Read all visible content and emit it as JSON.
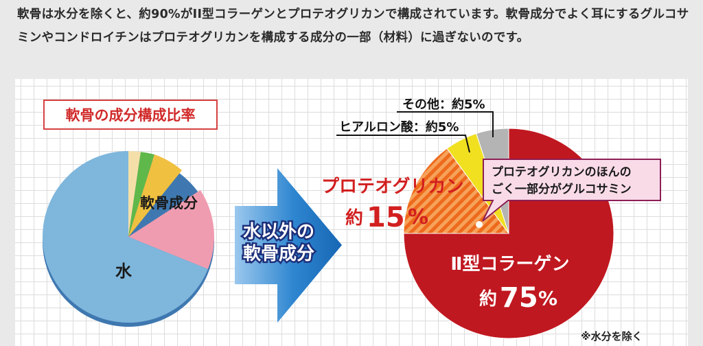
{
  "intro_text": "軟骨は水分を除くと、約90%がII型コラーゲンとプロテオグリカンで構成されています。軟骨成分でよく耳にするグルコサミンやコンドロイチンはプロテオグリカンを構成する成分の一部（材料）に過ぎないのです。",
  "chart_data": [
    {
      "type": "pie",
      "title": "軟骨の成分構成比率",
      "labels": [
        "水",
        "軟骨成分"
      ],
      "values": [
        70,
        30
      ],
      "colors": [
        "#7fb6dc",
        "#f09cb0"
      ]
    },
    {
      "type": "pie",
      "title": "",
      "note": "※水分を除く",
      "labels": [
        "Ⅱ型コラーゲン",
        "プロテオグリカン",
        "ヒアルロン酸",
        "その他"
      ],
      "values": [
        75,
        15,
        5,
        5
      ],
      "value_labels": [
        "約75%",
        "約15%",
        "約5%",
        "約5%"
      ],
      "callout_labels": [
        "Ⅱ型コラーゲン",
        "プロテオグリカン",
        "ヒアルロン酸：約5%",
        "その他：約5%"
      ],
      "colors": [
        "#c01820",
        "#f07828",
        "#f0e020",
        "#b4b4b4"
      ]
    }
  ],
  "arrow_label_line1": "水以外の",
  "arrow_label_line2": "軟骨成分",
  "callout_text_line1": "プロテオグリカンのほんの",
  "callout_text_line2": "ごく一部分がグルコサミン",
  "label_collagen_value_prefix": "約",
  "label_collagen_value_num": "75",
  "label_collagen_value_unit": "%",
  "label_pg_value_prefix": "約",
  "label_pg_value_num": "15",
  "label_pg_value_unit": "%"
}
